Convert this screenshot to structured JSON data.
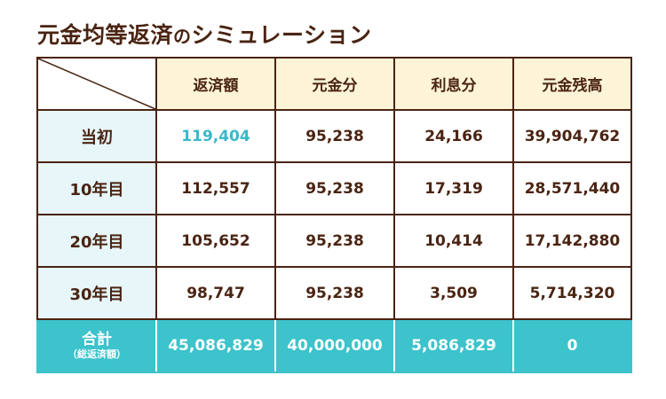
{
  "title": {
    "main": "元金均等返済",
    "connector": "の",
    "suffix": "シミュレーション"
  },
  "table": {
    "headers": [
      "返済額",
      "元金分",
      "利息分",
      "元金残高"
    ],
    "rows": [
      {
        "label": "当初",
        "values": [
          "119,404",
          "95,238",
          "24,166",
          "39,904,762"
        ]
      },
      {
        "label": "10年目",
        "values": [
          "112,557",
          "95,238",
          "17,319",
          "28,571,440"
        ]
      },
      {
        "label": "20年目",
        "values": [
          "105,652",
          "95,238",
          "10,414",
          "17,142,880"
        ]
      },
      {
        "label": "30年目",
        "values": [
          "98,747",
          "95,238",
          "3,509",
          "5,714,320"
        ]
      }
    ],
    "total": {
      "label": "合計",
      "sublabel": "（総返済額）",
      "values": [
        "45,086,829",
        "40,000,000",
        "5,086,829",
        "0"
      ]
    }
  },
  "colors": {
    "brown": "#4a2412",
    "header_bg": "#fdf4d8",
    "label_bg": "#e6f6f9",
    "total_bg": "#3cc3cc",
    "accent_text": "#3ab8c9"
  }
}
